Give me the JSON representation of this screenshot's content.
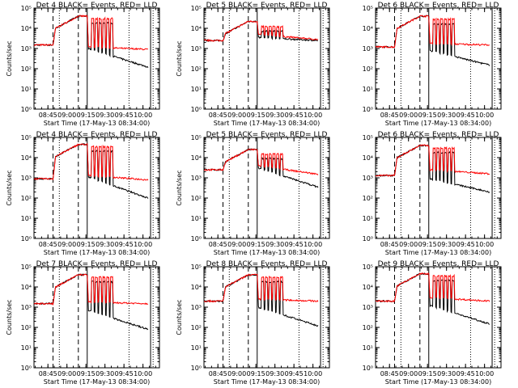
{
  "chart_data": {
    "type": "line",
    "layout": "3x3 grid of small multiples",
    "title_prefix": "Det",
    "title_suffix": "BLACK= Events, RED= LLD",
    "xlabel": "Start Time (17-May-13 08:34:00)",
    "ylabel": "Counts/sec",
    "x_tick_labels": [
      "08:45",
      "09:00",
      "09:15",
      "09:30",
      "09:45",
      "10:00"
    ],
    "x_ticks_minutes_after_start": [
      11,
      26,
      41,
      56,
      71,
      86
    ],
    "xlim_minutes_after_start": [
      0,
      99
    ],
    "y_scale": "log",
    "ylim": [
      1,
      100000
    ],
    "y_tick_labels": [
      "10⁰",
      "10¹",
      "10²",
      "10³",
      "10⁴",
      "10⁵"
    ],
    "y_tick_values": [
      1,
      10,
      100,
      1000,
      10000,
      100000
    ],
    "colors": {
      "events": "#000000",
      "lld": "#ff0000",
      "axes": "#000000"
    },
    "markers_minutes_after_start": {
      "dashed": [
        15,
        35
      ],
      "dotted": [
        20,
        75,
        94
      ],
      "solid": [
        42,
        92
      ]
    },
    "panels": [
      {
        "det": "4",
        "show_ylabel": true,
        "base": 1500,
        "flare": 40000,
        "post_lld": 1200,
        "end_lld": 900,
        "post_ev": 1000,
        "end_ev": 120,
        "spike": 30000
      },
      {
        "det": "5",
        "show_ylabel": true,
        "base": 2500,
        "flare": 22000,
        "post_lld": 5000,
        "end_lld": 2800,
        "post_ev": 3500,
        "end_ev": 2500,
        "spike": 12000
      },
      {
        "det": "6",
        "show_ylabel": false,
        "base": 1200,
        "flare": 40000,
        "post_lld": 1800,
        "end_lld": 1500,
        "post_ev": 800,
        "end_ev": 150,
        "spike": 28000
      },
      {
        "det": "4",
        "show_ylabel": true,
        "base": 900,
        "flare": 45000,
        "post_lld": 1300,
        "end_lld": 800,
        "post_ev": 1100,
        "end_ev": 100,
        "spike": 35000
      },
      {
        "det": "5",
        "show_ylabel": true,
        "base": 2500,
        "flare": 25000,
        "post_lld": 4000,
        "end_lld": 1500,
        "post_ev": 3000,
        "end_ev": 350,
        "spike": 15000
      },
      {
        "det": "6",
        "show_ylabel": false,
        "base": 1300,
        "flare": 40000,
        "post_lld": 2500,
        "end_lld": 1600,
        "post_ev": 900,
        "end_ev": 200,
        "spike": 30000
      },
      {
        "det": "7",
        "show_ylabel": true,
        "base": 1500,
        "flare": 40000,
        "post_lld": 1800,
        "end_lld": 1500,
        "post_ev": 700,
        "end_ev": 80,
        "spike": 30000
      },
      {
        "det": "8",
        "show_ylabel": true,
        "base": 2000,
        "flare": 40000,
        "post_lld": 2500,
        "end_lld": 2000,
        "post_ev": 1000,
        "end_ev": 120,
        "spike": 30000
      },
      {
        "det": "9",
        "show_ylabel": false,
        "base": 2000,
        "flare": 45000,
        "post_lld": 3000,
        "end_lld": 2000,
        "post_ev": 1200,
        "end_ev": 150,
        "spike": 35000
      }
    ]
  }
}
